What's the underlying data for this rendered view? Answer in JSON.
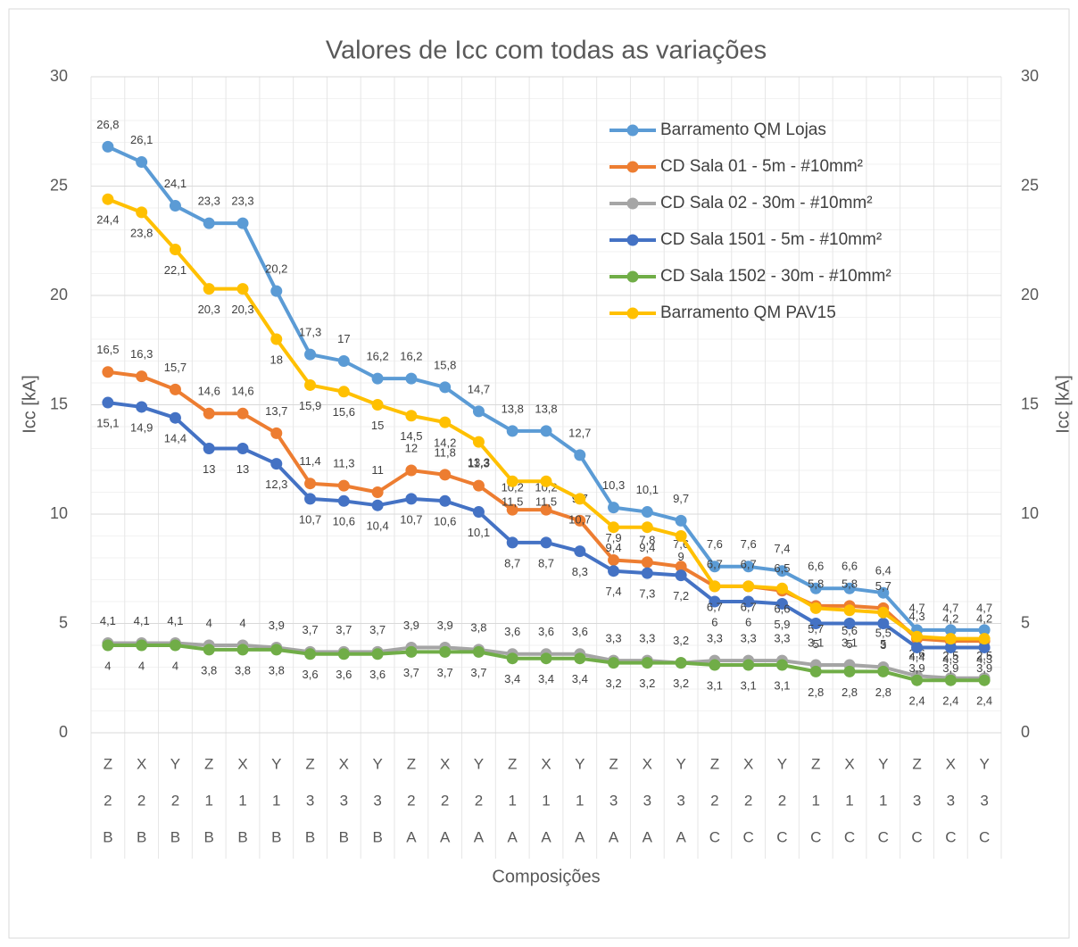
{
  "chart_data": {
    "type": "line",
    "title": "Valores de Icc com todas as variações",
    "x_label": "Composições",
    "y_label": "Icc [kA]",
    "y2_label": "Icc [kA]",
    "categories": [
      [
        "Z",
        "2",
        "B"
      ],
      [
        "X",
        "2",
        "B"
      ],
      [
        "Y",
        "2",
        "B"
      ],
      [
        "Z",
        "1",
        "B"
      ],
      [
        "X",
        "1",
        "B"
      ],
      [
        "Y",
        "1",
        "B"
      ],
      [
        "Z",
        "3",
        "B"
      ],
      [
        "X",
        "3",
        "B"
      ],
      [
        "Y",
        "3",
        "B"
      ],
      [
        "Z",
        "2",
        "A"
      ],
      [
        "X",
        "2",
        "A"
      ],
      [
        "Y",
        "2",
        "A"
      ],
      [
        "Z",
        "1",
        "A"
      ],
      [
        "X",
        "1",
        "A"
      ],
      [
        "Y",
        "1",
        "A"
      ],
      [
        "Z",
        "3",
        "A"
      ],
      [
        "X",
        "3",
        "A"
      ],
      [
        "Y",
        "3",
        "A"
      ],
      [
        "Z",
        "2",
        "C"
      ],
      [
        "X",
        "2",
        "C"
      ],
      [
        "Y",
        "2",
        "C"
      ],
      [
        "Z",
        "1",
        "C"
      ],
      [
        "X",
        "1",
        "C"
      ],
      [
        "Y",
        "1",
        "C"
      ],
      [
        "Z",
        "3",
        "C"
      ],
      [
        "X",
        "3",
        "C"
      ],
      [
        "Y",
        "3",
        "C"
      ]
    ],
    "ylim": [
      0,
      30
    ],
    "yticks": [
      0,
      5,
      10,
      15,
      20,
      25,
      30
    ],
    "y2lim": [
      0,
      30
    ],
    "y2ticks": [
      0,
      5,
      10,
      15,
      20,
      25,
      30
    ],
    "grid": true,
    "minor_grid": true,
    "legend": "upper right",
    "series": [
      {
        "name": "Barramento QM Lojas",
        "color": "#5b9bd5",
        "values": [
          26.8,
          26.1,
          24.1,
          23.3,
          23.3,
          20.2,
          17.3,
          17,
          16.2,
          16.2,
          15.8,
          14.7,
          13.8,
          13.8,
          12.7,
          10.3,
          10.1,
          9.7,
          7.6,
          7.6,
          7.4,
          6.6,
          6.6,
          6.4,
          4.7,
          4.7,
          4.7
        ],
        "value_labels": [
          "26,8",
          "26,1",
          "24,1",
          "23,3",
          "23,3",
          "20,2",
          "17,3",
          "17",
          "16,2",
          "16,2",
          "15,8",
          "14,7",
          "13,8",
          "13,8",
          "12,7",
          "10,3",
          "10,1",
          "9,7",
          "7,6",
          "7,6",
          "7,4",
          "6,6",
          "6,6",
          "6,4",
          "4,7",
          "4,7",
          "4,7"
        ]
      },
      {
        "name": "CD Sala 01 - 5m - #10mm²",
        "color": "#ed7d31",
        "values": [
          16.5,
          16.3,
          15.7,
          14.6,
          14.6,
          13.7,
          11.4,
          11.3,
          11,
          12,
          11.8,
          11.3,
          10.2,
          10.2,
          9.7,
          7.9,
          7.8,
          7.6,
          6.7,
          6.7,
          6.5,
          5.8,
          5.8,
          5.7,
          4.3,
          4.2,
          4.2
        ],
        "value_labels": [
          "16,5",
          "16,3",
          "15,7",
          "14,6",
          "14,6",
          "13,7",
          "11,4",
          "11,3",
          "11",
          "12",
          "11,8",
          "11,3",
          "10,2",
          "10,2",
          "9,7",
          "7,9",
          "7,8",
          "7,6",
          "6,7",
          "6,7",
          "6,5",
          "5,8",
          "5,8",
          "5,7",
          "4,3",
          "4,2",
          "4,2"
        ]
      },
      {
        "name": "CD Sala 02 - 30m - #10mm²",
        "color": "#a5a5a5",
        "values": [
          4.1,
          4.1,
          4.1,
          4,
          4,
          3.9,
          3.7,
          3.7,
          3.7,
          3.9,
          3.9,
          3.8,
          3.6,
          3.6,
          3.6,
          3.3,
          3.3,
          3.2,
          3.3,
          3.3,
          3.3,
          3.1,
          3.1,
          3,
          2.6,
          2.5,
          2.5
        ],
        "value_labels": [
          "4,1",
          "4,1",
          "4,1",
          "4",
          "4",
          "3,9",
          "3,7",
          "3,7",
          "3,7",
          "3,9",
          "3,9",
          "3,8",
          "3,6",
          "3,6",
          "3,6",
          "3,3",
          "3,3",
          "3,2",
          "3,3",
          "3,3",
          "3,3",
          "3,1",
          "3,1",
          "3",
          "2,6",
          "2,5",
          "2,5"
        ]
      },
      {
        "name": "CD Sala 1501 - 5m - #10mm²",
        "color": "#4472c4",
        "values": [
          15.1,
          14.9,
          14.4,
          13,
          13,
          12.3,
          10.7,
          10.6,
          10.4,
          10.7,
          10.6,
          10.1,
          8.7,
          8.7,
          8.3,
          7.4,
          7.3,
          7.2,
          6,
          6,
          5.9,
          5,
          5,
          5,
          3.9,
          3.9,
          3.9
        ],
        "value_labels": [
          "15,1",
          "14,9",
          "14,4",
          "13",
          "13",
          "12,3",
          "10,7",
          "10,6",
          "10,4",
          "10,7",
          "10,6",
          "10,1",
          "8,7",
          "8,7",
          "8,3",
          "7,4",
          "7,3",
          "7,2",
          "6",
          "6",
          "5,9",
          "5",
          "5",
          "5",
          "3,9",
          "3,9",
          "3,9"
        ]
      },
      {
        "name": "CD Sala 1502 - 30m - #10mm²",
        "color": "#70ad47",
        "values": [
          4,
          4,
          4,
          3.8,
          3.8,
          3.8,
          3.6,
          3.6,
          3.6,
          3.7,
          3.7,
          3.7,
          3.4,
          3.4,
          3.4,
          3.2,
          3.2,
          3.2,
          3.1,
          3.1,
          3.1,
          2.8,
          2.8,
          2.8,
          2.4,
          2.4,
          2.4
        ],
        "value_labels": [
          "4",
          "4",
          "4",
          "3,8",
          "3,8",
          "3,8",
          "3,6",
          "3,6",
          "3,6",
          "3,7",
          "3,7",
          "3,7",
          "3,4",
          "3,4",
          "3,4",
          "3,2",
          "3,2",
          "3,2",
          "3,1",
          "3,1",
          "3,1",
          "2,8",
          "2,8",
          "2,8",
          "2,4",
          "2,4",
          "2,4"
        ]
      },
      {
        "name": "Barramento QM PAV15",
        "color": "#ffc000",
        "values": [
          24.4,
          23.8,
          22.1,
          20.3,
          20.3,
          18,
          15.9,
          15.6,
          15,
          14.5,
          14.2,
          13.3,
          11.5,
          11.5,
          10.7,
          9.4,
          9.4,
          9,
          6.7,
          6.7,
          6.6,
          5.7,
          5.6,
          5.5,
          4.4,
          4.3,
          4.3
        ],
        "value_labels": [
          "24,4",
          "23,8",
          "22,1",
          "20,3",
          "20,3",
          "18",
          "15,9",
          "15,6",
          "15",
          "14,5",
          "14,2",
          "13,3",
          "11,5",
          "11,5",
          "10,7",
          "9,4",
          "9,4",
          "9",
          "6,7",
          "6,7",
          "6,6",
          "5,7",
          "5,6",
          "5,5",
          "4,4",
          "4,3",
          "4,3"
        ]
      }
    ]
  }
}
